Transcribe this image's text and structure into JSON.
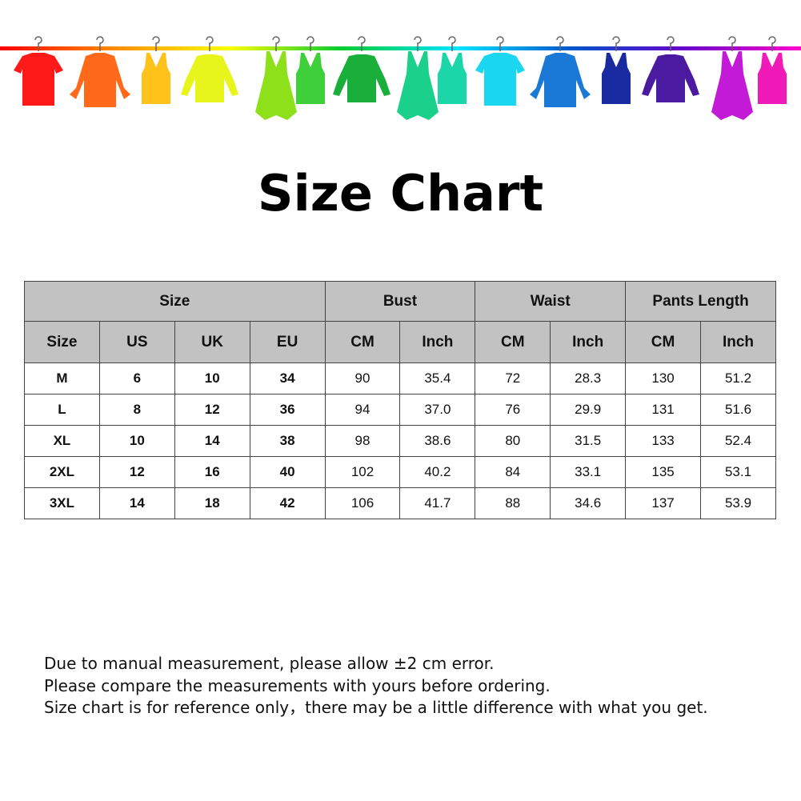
{
  "banner": {
    "rail_gradient": [
      "#ff0000",
      "#ff8c00",
      "#ffff00",
      "#00cc33",
      "#00e5ff",
      "#0055cc",
      "#6a00cc",
      "#ff00cc"
    ],
    "garments": [
      {
        "icon": "tshirt-icon",
        "color": "#ff1a1a"
      },
      {
        "icon": "shirt-icon",
        "color": "#ff6a1a"
      },
      {
        "icon": "tank-top-icon",
        "color": "#ffc21a"
      },
      {
        "icon": "sweater-icon",
        "color": "#e8f51a"
      },
      {
        "icon": "dress-icon",
        "color": "#8ee01a"
      },
      {
        "icon": "tank-top-icon",
        "color": "#3fcf3a"
      },
      {
        "icon": "sweater-icon",
        "color": "#1aae3a"
      },
      {
        "icon": "dress-icon",
        "color": "#1ad08a"
      },
      {
        "icon": "tank-top-icon",
        "color": "#1ad6a8"
      },
      {
        "icon": "tshirt-icon",
        "color": "#1ad6f0"
      },
      {
        "icon": "shirt-icon",
        "color": "#1a78d6"
      },
      {
        "icon": "tank-top-icon",
        "color": "#1a2aa0"
      },
      {
        "icon": "sweater-icon",
        "color": "#4a1aa0"
      },
      {
        "icon": "dress-icon",
        "color": "#c21ad6"
      },
      {
        "icon": "tank-top-icon",
        "color": "#f01ab8"
      }
    ]
  },
  "title": "Size Chart",
  "table": {
    "header_color": "#c2c2c2",
    "groups": [
      "Size",
      "Bust",
      "Waist",
      "Pants Length"
    ],
    "subheaders": [
      "Size",
      "US",
      "UK",
      "EU",
      "CM",
      "Inch",
      "CM",
      "Inch",
      "CM",
      "Inch"
    ],
    "rows": [
      [
        "M",
        "6",
        "10",
        "34",
        "90",
        "35.4",
        "72",
        "28.3",
        "130",
        "51.2"
      ],
      [
        "L",
        "8",
        "12",
        "36",
        "94",
        "37.0",
        "76",
        "29.9",
        "131",
        "51.6"
      ],
      [
        "XL",
        "10",
        "14",
        "38",
        "98",
        "38.6",
        "80",
        "31.5",
        "133",
        "52.4"
      ],
      [
        "2XL",
        "12",
        "16",
        "40",
        "102",
        "40.2",
        "84",
        "33.1",
        "135",
        "53.1"
      ],
      [
        "3XL",
        "14",
        "18",
        "42",
        "106",
        "41.7",
        "88",
        "34.6",
        "137",
        "53.9"
      ]
    ]
  },
  "notes": [
    "Due to manual measurement, please allow ±2 cm error.",
    "Please compare the measurements with yours before ordering.",
    "Size chart is for reference only，there may be a little difference with what you get."
  ]
}
